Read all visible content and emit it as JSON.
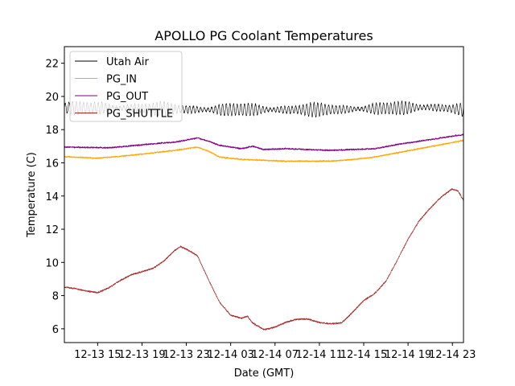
{
  "chart_data": {
    "type": "line",
    "title": "APOLLO PG Coolant Temperatures",
    "xlabel": "Date (GMT)",
    "ylabel": "Temperature (C)",
    "x_unit": "hours since 12-13 12:00",
    "xlim": [
      0,
      36
    ],
    "ylim": [
      5.17,
      23.0
    ],
    "grid": false,
    "legend_position": "top-left",
    "x_ticks": [
      {
        "value": 3,
        "label": "12-13 15"
      },
      {
        "value": 7,
        "label": "12-13 19"
      },
      {
        "value": 11,
        "label": "12-13 23"
      },
      {
        "value": 15,
        "label": "12-14 03"
      },
      {
        "value": 19,
        "label": "12-14 07"
      },
      {
        "value": 23,
        "label": "12-14 11"
      },
      {
        "value": 27,
        "label": "12-14 15"
      },
      {
        "value": 31,
        "label": "12-14 19"
      },
      {
        "value": 35,
        "label": "12-14 23"
      }
    ],
    "y_ticks": [
      {
        "value": 6,
        "label": "6"
      },
      {
        "value": 8,
        "label": "8"
      },
      {
        "value": 10,
        "label": "10"
      },
      {
        "value": 12,
        "label": "12"
      },
      {
        "value": 14,
        "label": "14"
      },
      {
        "value": 16,
        "label": "16"
      },
      {
        "value": 18,
        "label": "18"
      },
      {
        "value": 20,
        "label": "20"
      },
      {
        "value": 22,
        "label": "22"
      }
    ],
    "series": [
      {
        "name": "Utah Air",
        "color": "#000000",
        "oscillation": {
          "mean": 19.25,
          "amplitude": 0.35,
          "period_hours": 0.33
        },
        "x": [
          0,
          6,
          12,
          18,
          24,
          30,
          33,
          36
        ],
        "values": [
          19.3,
          19.3,
          19.2,
          19.2,
          19.2,
          19.3,
          19.35,
          19.2
        ]
      },
      {
        "name": "PG_IN",
        "color": "#ffa500",
        "x": [
          0,
          3,
          6,
          8,
          10,
          12,
          13,
          14,
          16,
          18,
          20,
          22,
          24,
          26,
          28,
          30,
          32,
          34,
          36
        ],
        "values": [
          16.37,
          16.28,
          16.45,
          16.6,
          16.75,
          16.95,
          16.7,
          16.35,
          16.2,
          16.15,
          16.1,
          16.1,
          16.1,
          16.2,
          16.35,
          16.6,
          16.85,
          17.1,
          17.35
        ]
      },
      {
        "name": "PG_OUT",
        "color": "#800080",
        "x": [
          0,
          4,
          8,
          10,
          12,
          13,
          14,
          15,
          16,
          17,
          18,
          20,
          22,
          24,
          26,
          28,
          30,
          32,
          34,
          36
        ],
        "values": [
          16.95,
          16.9,
          17.15,
          17.25,
          17.5,
          17.3,
          17.05,
          16.95,
          16.85,
          17.0,
          16.8,
          16.85,
          16.8,
          16.75,
          16.8,
          16.85,
          17.1,
          17.3,
          17.5,
          17.7
        ]
      },
      {
        "name": "PG_SHUTTLE",
        "color": "#a52a2a",
        "x": [
          0,
          1,
          2,
          3,
          4,
          5,
          6,
          7,
          8,
          9,
          10,
          10.5,
          11,
          12,
          13,
          14,
          15,
          16,
          16.5,
          17,
          18,
          19,
          20,
          21,
          22,
          23,
          24,
          25,
          26,
          27,
          28,
          29,
          30,
          31,
          32,
          33,
          34,
          35,
          35.5,
          36
        ],
        "values": [
          8.52,
          8.42,
          8.28,
          8.18,
          8.47,
          8.9,
          9.25,
          9.44,
          9.64,
          10.1,
          10.75,
          10.95,
          10.8,
          10.4,
          8.96,
          7.6,
          6.82,
          6.63,
          6.77,
          6.34,
          5.95,
          6.1,
          6.4,
          6.58,
          6.58,
          6.38,
          6.3,
          6.35,
          7.0,
          7.7,
          8.13,
          8.86,
          10.1,
          11.4,
          12.5,
          13.27,
          13.95,
          14.43,
          14.3,
          13.75
        ]
      }
    ]
  }
}
